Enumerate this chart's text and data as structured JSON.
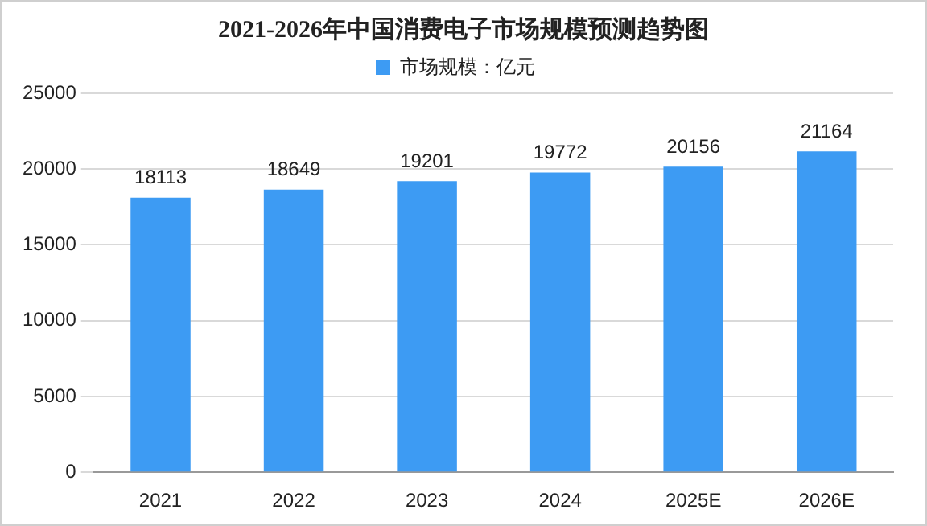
{
  "chart_data": {
    "type": "bar",
    "title": "2021-2026年中国消费电子市场规模预测趋势图",
    "categories": [
      "2021",
      "2022",
      "2023",
      "2024",
      "2025E",
      "2026E"
    ],
    "series": [
      {
        "name": "市场规模：亿元",
        "color": "#3d9bf3",
        "values": [
          18113,
          18649,
          19201,
          19772,
          20156,
          21164
        ]
      }
    ],
    "ylim": [
      0,
      25000
    ],
    "yticks": [
      0,
      5000,
      10000,
      15000,
      20000,
      25000
    ],
    "grid": "y",
    "legend": "top",
    "data_labels": true
  }
}
